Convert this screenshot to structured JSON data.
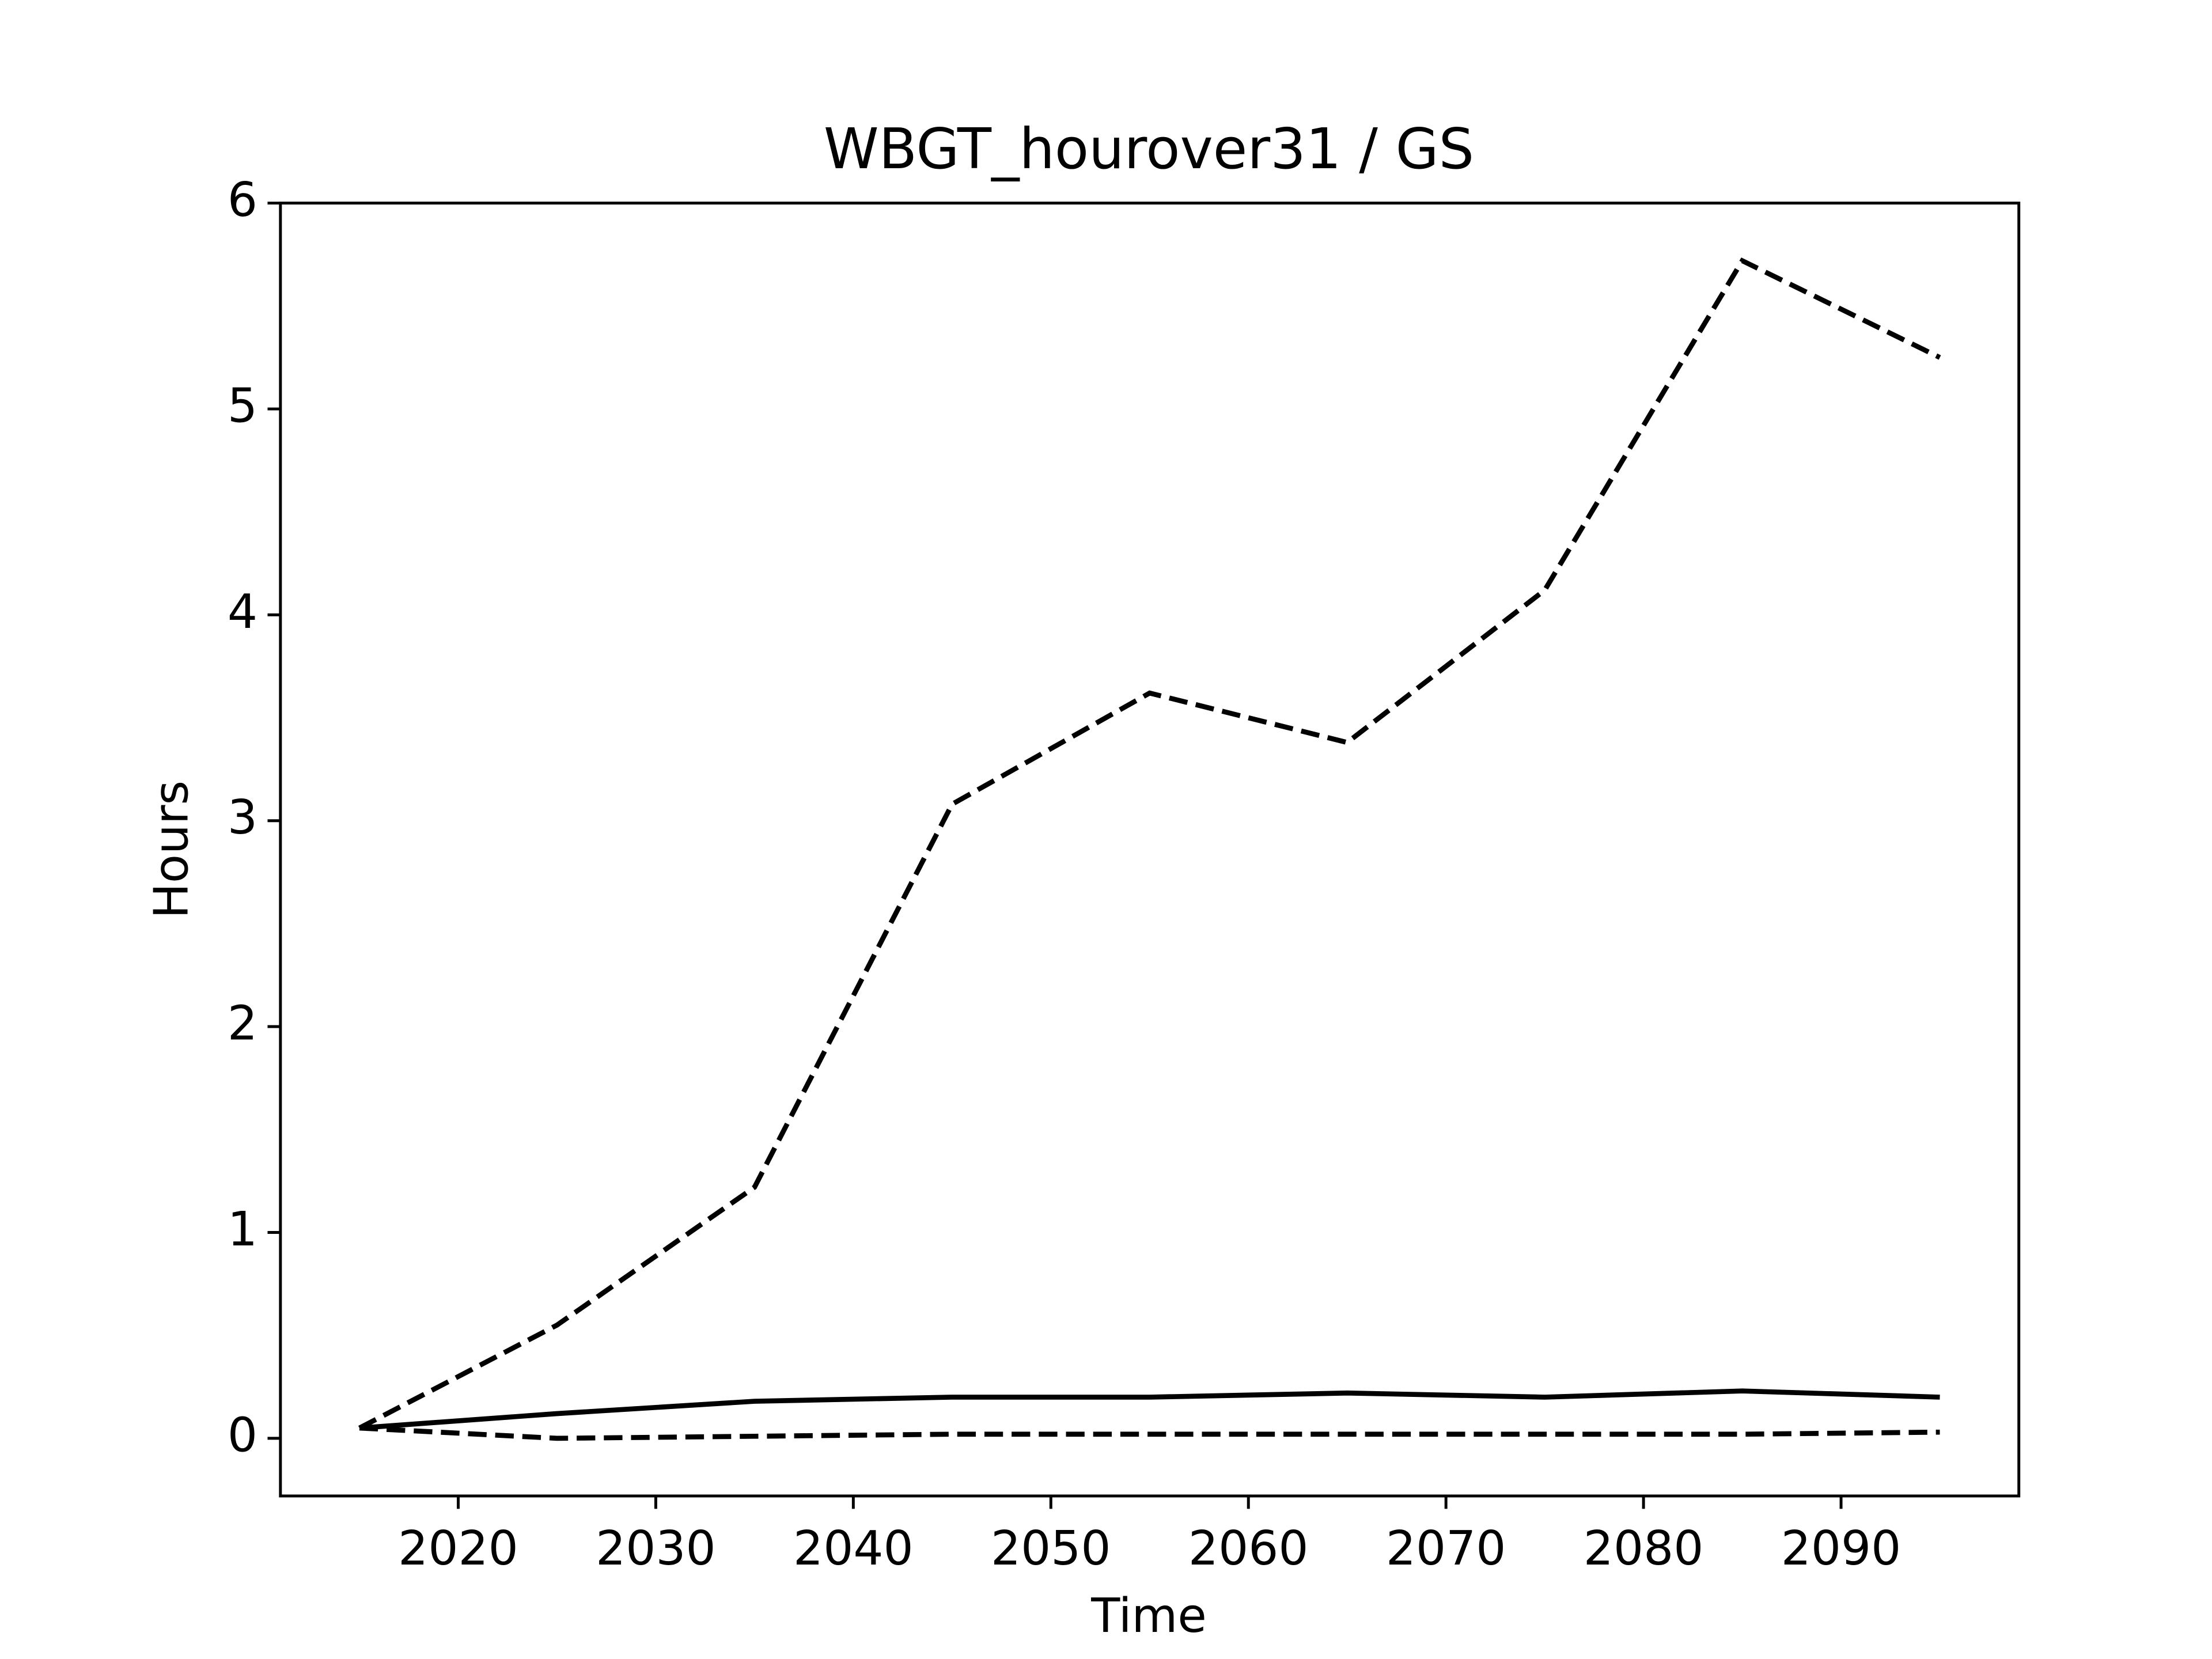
{
  "chart_data": {
    "type": "line",
    "title": "WBGT_hourover31 / GS",
    "x_label": "Time",
    "y_label": "Hours",
    "x": [
      2015,
      2025,
      2035,
      2045,
      2055,
      2065,
      2075,
      2085,
      2095
    ],
    "series": [
      {
        "color": "#000000",
        "linestyle": "dashed",
        "values": [
          0.05,
          0.55,
          1.22,
          3.08,
          3.62,
          3.38,
          4.12,
          5.72,
          5.25
        ]
      },
      {
        "color": "#000000",
        "linestyle": "solid",
        "values": [
          0.05,
          0.12,
          0.18,
          0.2,
          0.2,
          0.22,
          0.2,
          0.23,
          0.2
        ]
      },
      {
        "color": "#000000",
        "linestyle": "dashed",
        "values": [
          0.05,
          0.0,
          0.01,
          0.02,
          0.02,
          0.02,
          0.02,
          0.02,
          0.03
        ]
      }
    ],
    "xlim": [
      2011,
      2099
    ],
    "xticks": [
      2020,
      2030,
      2040,
      2050,
      2060,
      2070,
      2080,
      2090
    ],
    "ylim": [
      -0.28,
      6
    ],
    "yticks": [
      0,
      1,
      2,
      3,
      4,
      5,
      6
    ],
    "grid": false
  }
}
